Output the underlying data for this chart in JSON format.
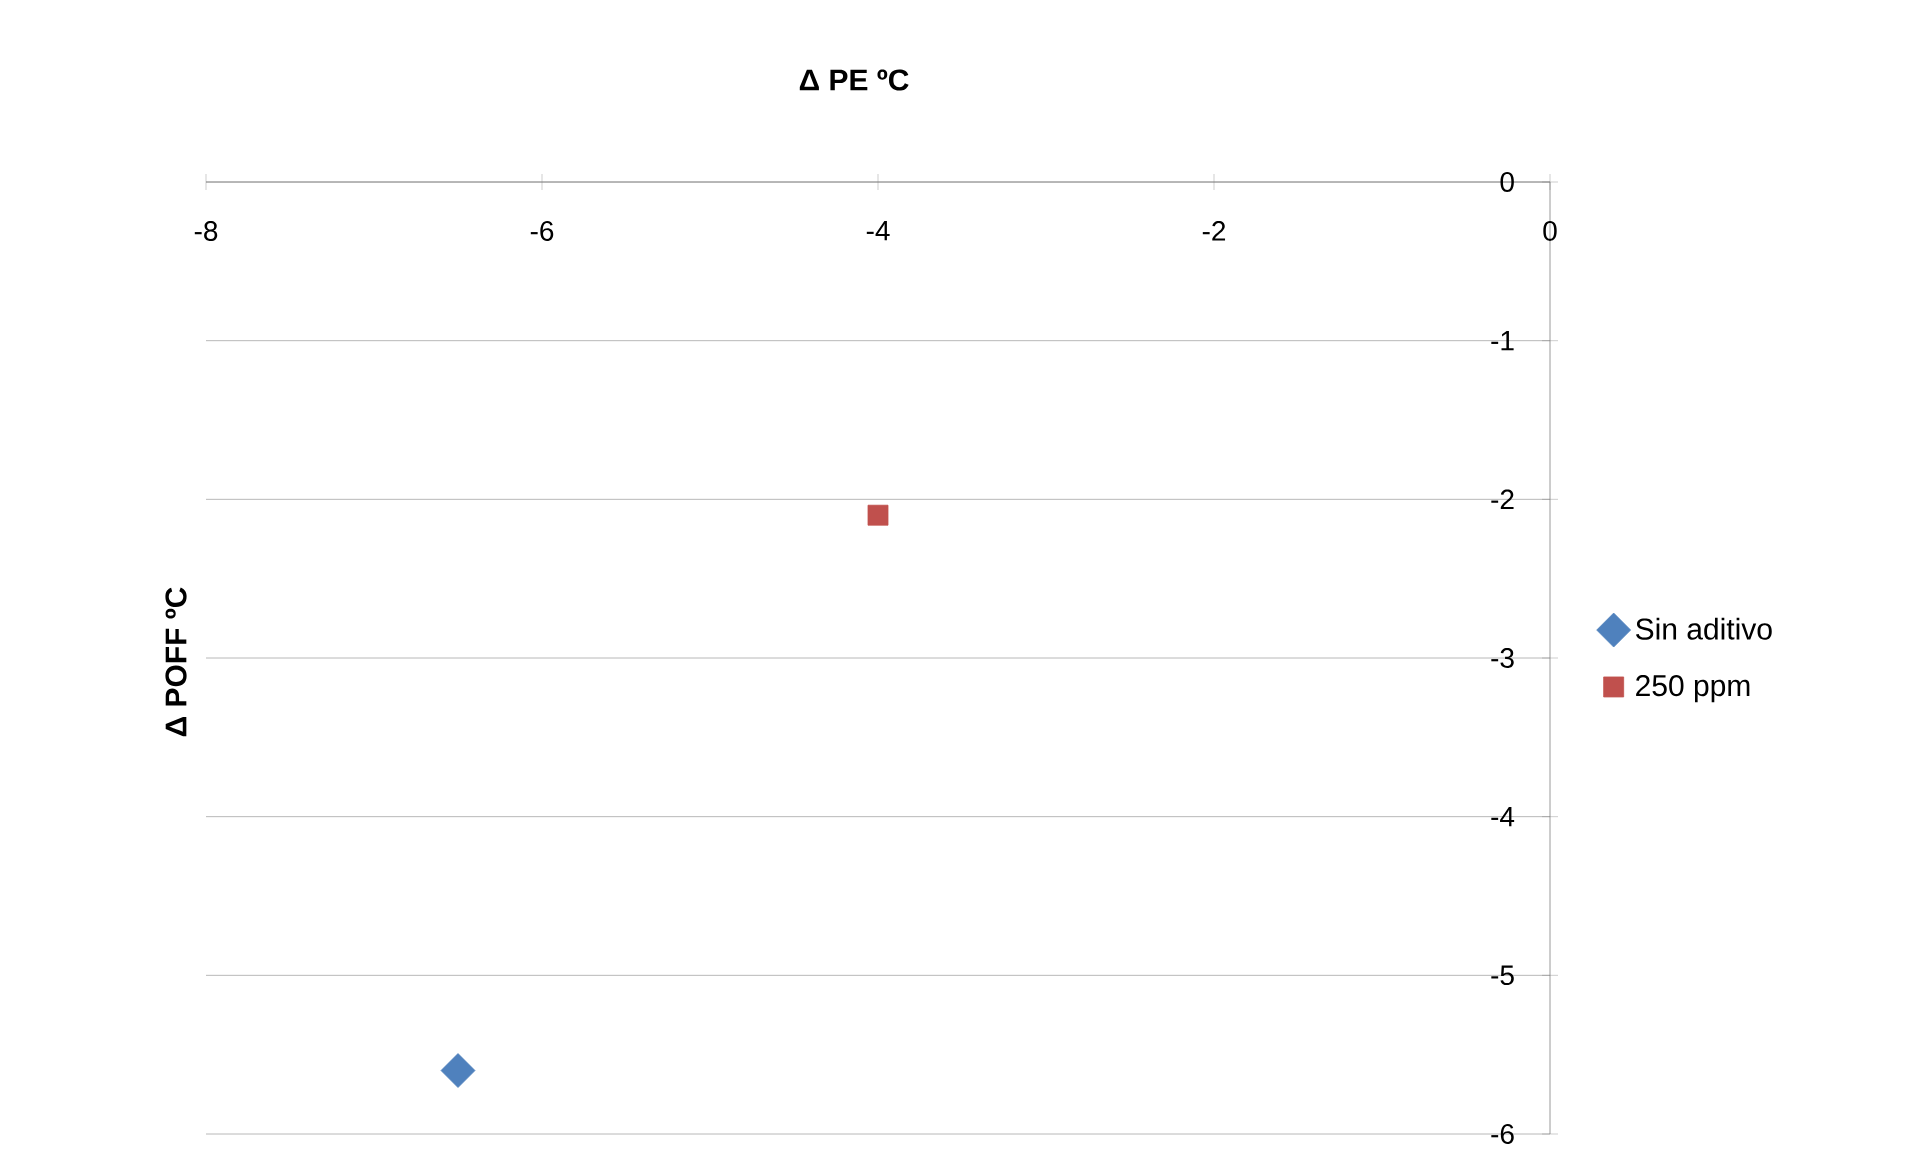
{
  "chart_data": {
    "type": "scatter",
    "xlabel": "Δ PE ºC",
    "ylabel": "Δ POFF ºC",
    "xlim": [
      -8,
      0
    ],
    "xticks": [
      -8,
      -6,
      -4,
      -2,
      0
    ],
    "ylim": [
      -6,
      0
    ],
    "yticks": [
      -6,
      -5,
      -4,
      -3,
      -2,
      -1,
      0
    ],
    "grid": "y",
    "legend": "right",
    "series": [
      {
        "name": "Sin aditivo",
        "color": "#4f81bd",
        "marker": "diamond",
        "x": [
          -6.5
        ],
        "values": [
          -5.6
        ]
      },
      {
        "name": "250 ppm",
        "color": "#c0504d",
        "marker": "square",
        "x": [
          -4
        ],
        "values": [
          -2.1
        ]
      }
    ]
  }
}
